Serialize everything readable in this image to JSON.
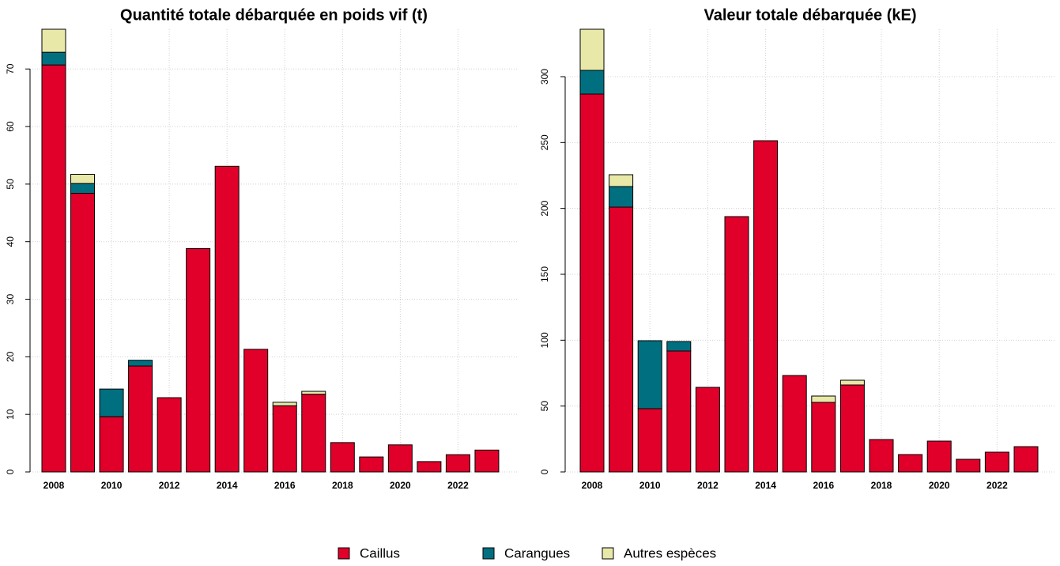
{
  "chart_data": [
    {
      "type": "bar",
      "stacked": true,
      "title": "Quantité totale débarquée en poids vif (t)",
      "categories": [
        "2008",
        null,
        "2010",
        null,
        "2012",
        null,
        "2014",
        null,
        "2016",
        null,
        "2018",
        null,
        "2020",
        null,
        "2022",
        null
      ],
      "series": [
        {
          "name": "Caillus",
          "color": "#e0002a",
          "values": [
            70.7,
            48.4,
            9.6,
            18.4,
            12.9,
            38.8,
            53.1,
            21.3,
            11.5,
            13.5,
            5.1,
            2.6,
            4.7,
            1.8,
            3.0,
            3.8
          ]
        },
        {
          "name": "Carangues",
          "color": "#007080",
          "values": [
            2.2,
            1.7,
            4.8,
            1.0,
            0,
            0,
            0,
            0,
            0,
            0,
            0,
            0,
            0,
            0,
            0,
            0
          ]
        },
        {
          "name": "Autres espèces",
          "color": "#e8e8a8",
          "values": [
            4.0,
            1.6,
            0,
            0,
            0,
            0,
            0,
            0,
            0.6,
            0.5,
            0,
            0,
            0,
            0,
            0,
            0
          ]
        }
      ],
      "ylim": [
        0,
        76.9
      ],
      "yticks": [
        0,
        10,
        20,
        30,
        40,
        50,
        60,
        70
      ],
      "grid": true
    },
    {
      "type": "bar",
      "stacked": true,
      "title": "Valeur totale débarquée (kE)",
      "categories": [
        "2008",
        null,
        "2010",
        null,
        "2012",
        null,
        "2014",
        null,
        "2016",
        null,
        "2018",
        null,
        "2020",
        null,
        "2022",
        null
      ],
      "series": [
        {
          "color": "#e0002a",
          "values": [
            286.8,
            201,
            48,
            91.8,
            64.2,
            193.8,
            251.4,
            73.2,
            52.8,
            66,
            24.6,
            13.2,
            23.4,
            9.6,
            15,
            19.2
          ]
        },
        {
          "color": "#007080",
          "values": [
            18,
            15.6,
            51.6,
            7.2,
            0,
            0,
            0,
            0,
            0,
            0,
            0,
            0,
            0,
            0,
            0,
            0
          ]
        },
        {
          "color": "#e8e8a8",
          "values": [
            31.2,
            9,
            0,
            0,
            0,
            0,
            0,
            0,
            4.8,
            3.6,
            0,
            0,
            0,
            0,
            0,
            0
          ]
        }
      ],
      "ylim": [
        0,
        336
      ],
      "yticks": [
        0,
        50,
        100,
        150,
        200,
        250,
        300
      ],
      "grid": true
    }
  ]
}
